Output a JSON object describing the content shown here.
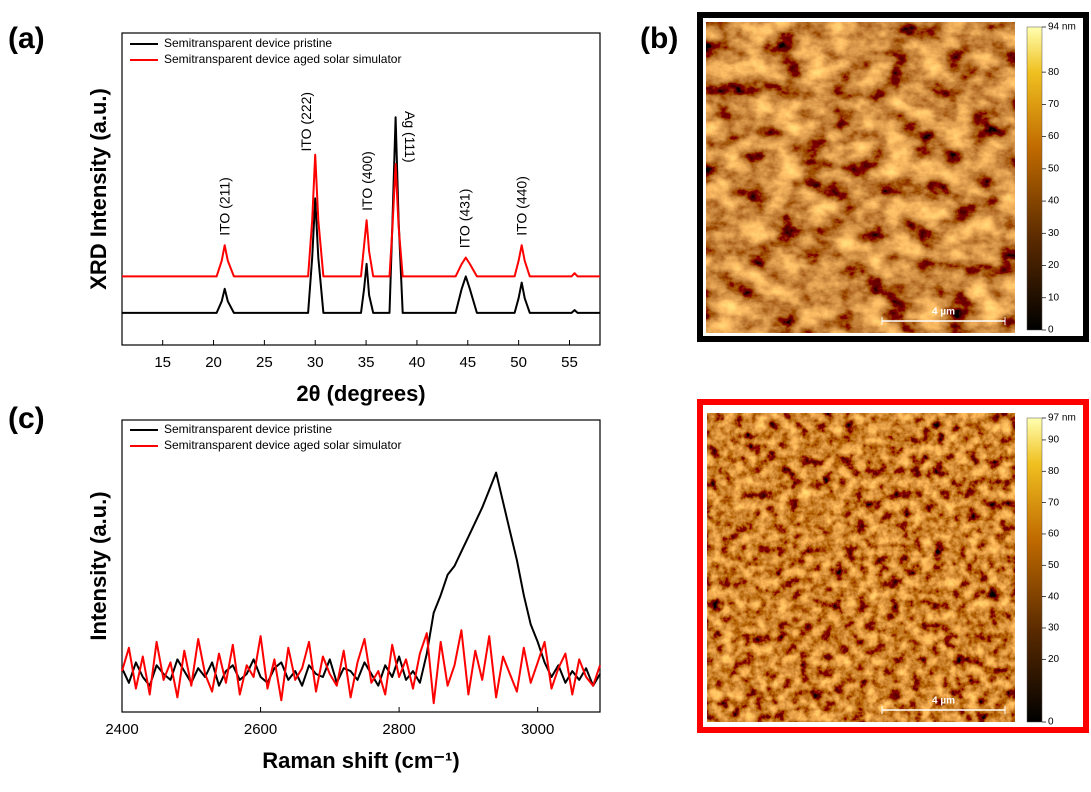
{
  "chart_data": [
    {
      "type": "line",
      "panel": "(a)",
      "xlabel": "2θ (degrees)",
      "ylabel": "XRD Intensity (a.u.)",
      "x": [
        11,
        20.3,
        20.8,
        21.1,
        21.4,
        22,
        29.3,
        29.7,
        30.0,
        30.3,
        30.8,
        34.5,
        34.8,
        35.05,
        35.3,
        35.7,
        37.3,
        37.6,
        37.9,
        38.2,
        38.6,
        43.8,
        44.4,
        44.8,
        45.2,
        45.9,
        49.6,
        50.0,
        50.3,
        50.6,
        51.1,
        55.2,
        55.5,
        55.8,
        58
      ],
      "series": [
        {
          "name": "Semitransparent device pristine",
          "color": "#000000",
          "values": [
            10.3,
            10.3,
            14,
            18,
            14,
            10.3,
            10.3,
            28,
            47,
            28,
            10.3,
            10.3,
            18,
            26,
            16,
            10.3,
            10.3,
            40,
            73,
            40,
            10.3,
            10.3,
            18,
            22,
            18,
            10.3,
            10.3,
            15,
            20,
            15,
            10.3,
            10.3,
            11.2,
            10.3,
            10.3
          ]
        },
        {
          "name": "Semitransparent device aged solar simulator",
          "color": "#ff0000",
          "values": [
            22,
            22,
            27,
            32,
            27,
            22,
            22,
            40,
            61,
            40,
            22,
            22,
            32,
            40,
            30,
            22,
            22,
            38,
            58,
            38,
            22,
            22,
            26,
            28,
            26,
            22,
            22,
            27,
            32,
            27,
            22,
            22,
            23,
            22,
            22
          ]
        }
      ],
      "xlim": [
        11,
        58
      ],
      "xticks": [
        15,
        20,
        25,
        30,
        35,
        40,
        45,
        50,
        55
      ],
      "ylim": [
        0,
        100
      ],
      "legend": "upper left",
      "annotations": [
        {
          "text": "ITO (211)",
          "x": 21.2,
          "y": 35,
          "rotation": -90
        },
        {
          "text": "ITO (222)",
          "x": 29.2,
          "y": 62,
          "rotation": -90
        },
        {
          "text": "ITO (400)",
          "x": 35.2,
          "y": 43,
          "rotation": -90
        },
        {
          "text": "Ag (111)",
          "x": 39.2,
          "y": 75,
          "rotation": 90
        },
        {
          "text": "ITO (431)",
          "x": 44.8,
          "y": 31,
          "rotation": -90
        },
        {
          "text": "ITO (440)",
          "x": 50.4,
          "y": 35,
          "rotation": -90
        }
      ]
    },
    {
      "type": "image",
      "panel": "(b)",
      "border_color": "#000000",
      "scalebar": "4 µm",
      "colorbar": {
        "lim": [
          0,
          94
        ],
        "ticks": [
          0,
          10,
          20,
          30,
          40,
          50,
          60,
          70,
          80,
          {
            "value": 94,
            "label": "94 nm"
          }
        ]
      }
    },
    {
      "type": "line",
      "panel": "(c)",
      "xlabel": "Raman shift (cm⁻¹)",
      "ylabel": "Intensity (a.u.)",
      "x": [
        2400,
        2410,
        2420,
        2430,
        2440,
        2450,
        2460,
        2470,
        2480,
        2490,
        2500,
        2510,
        2520,
        2530,
        2540,
        2550,
        2560,
        2570,
        2580,
        2590,
        2600,
        2610,
        2620,
        2630,
        2640,
        2650,
        2660,
        2670,
        2680,
        2690,
        2700,
        2710,
        2720,
        2730,
        2740,
        2750,
        2760,
        2770,
        2780,
        2790,
        2800,
        2810,
        2820,
        2830,
        2840,
        2850,
        2860,
        2870,
        2880,
        2890,
        2900,
        2910,
        2920,
        2930,
        2940,
        2950,
        2960,
        2970,
        2980,
        2990,
        3000,
        3010,
        3020,
        3030,
        3040,
        3050,
        3060,
        3070,
        3080,
        3090
      ],
      "series": [
        {
          "name": "Semitransparent device pristine",
          "color": "#000000",
          "values": [
            15,
            10,
            17,
            12,
            9,
            16,
            13,
            11,
            18,
            14,
            10,
            15,
            12,
            17,
            9,
            14,
            16,
            11,
            13,
            18,
            12,
            10,
            15,
            17,
            11,
            14,
            9,
            16,
            13,
            12,
            18,
            10,
            15,
            14,
            11,
            17,
            13,
            9,
            16,
            12,
            19,
            11,
            14,
            10,
            20,
            34,
            40,
            47,
            50,
            55,
            60,
            65,
            70,
            76,
            82,
            72,
            62,
            52,
            40,
            30,
            24,
            17,
            12,
            16,
            10,
            14,
            11,
            15,
            9,
            13
          ]
        },
        {
          "name": "Semitransparent device aged solar simulator",
          "color": "#ff0000",
          "values": [
            14,
            22,
            8,
            19,
            6,
            24,
            11,
            17,
            5,
            21,
            9,
            25,
            13,
            7,
            20,
            10,
            23,
            6,
            16,
            12,
            26,
            8,
            18,
            4,
            22,
            11,
            15,
            24,
            7,
            19,
            13,
            9,
            21,
            5,
            17,
            25,
            10,
            14,
            6,
            23,
            12,
            18,
            8,
            20,
            27,
            3,
            24,
            9,
            16,
            28,
            6,
            21,
            11,
            26,
            5,
            19,
            13,
            7,
            22,
            10,
            17,
            24,
            8,
            15,
            20,
            6,
            18,
            12,
            9,
            16
          ]
        }
      ],
      "xlim": [
        2400,
        3090
      ],
      "xticks": [
        2400,
        2600,
        2800,
        3000
      ],
      "ylim": [
        0,
        100
      ],
      "legend": "upper left"
    },
    {
      "type": "image",
      "panel": null,
      "border_color": "#ff0000",
      "scalebar": "4 µm",
      "colorbar": {
        "lim": [
          0,
          97
        ],
        "ticks": [
          0,
          20,
          30,
          40,
          50,
          60,
          70,
          80,
          90,
          {
            "value": 97,
            "label": "97 nm"
          }
        ]
      }
    }
  ]
}
